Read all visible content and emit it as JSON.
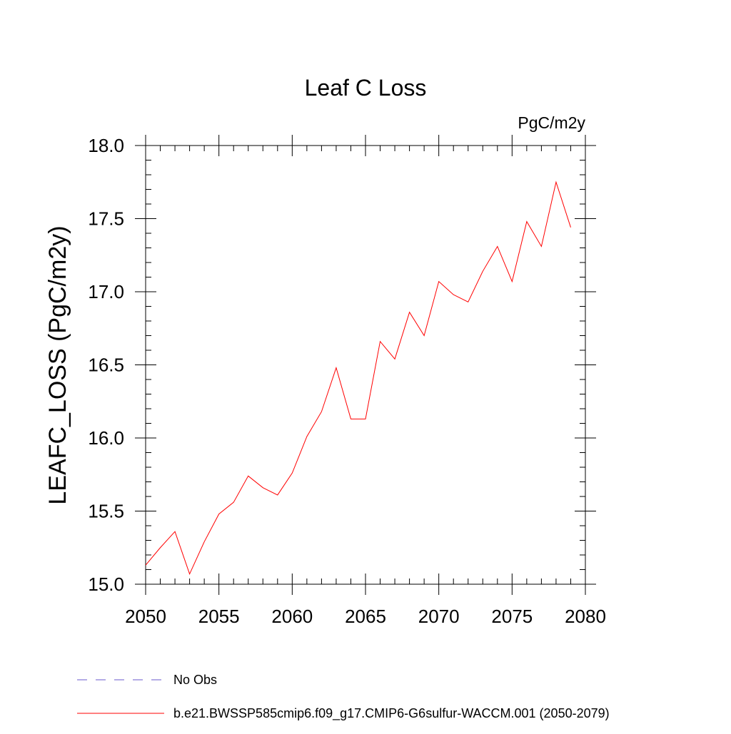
{
  "chart_data": {
    "type": "line",
    "title": "Leaf C Loss",
    "units_label": "PgC/m2y",
    "ylabel": "LEAFC_LOSS  (PgC/m2y)",
    "xlabel": "",
    "xlim": [
      2050,
      2080
    ],
    "ylim": [
      15.0,
      18.0
    ],
    "x_ticks": [
      "2050",
      "2055",
      "2060",
      "2065",
      "2070",
      "2075",
      "2080"
    ],
    "y_ticks": [
      "15.0",
      "15.5",
      "16.0",
      "16.5",
      "17.0",
      "17.5",
      "18.0"
    ],
    "grid": false,
    "legend_position": "bottom",
    "series": [
      {
        "name": "b.e21.BWSSP585cmip6.f09_g17.CMIP6-G6sulfur-WACCM.001 (2050-2079)",
        "color": "#ff0000",
        "style": "solid",
        "x": [
          2050,
          2051,
          2052,
          2053,
          2054,
          2055,
          2056,
          2057,
          2058,
          2059,
          2060,
          2061,
          2062,
          2063,
          2064,
          2065,
          2066,
          2067,
          2068,
          2069,
          2070,
          2071,
          2072,
          2073,
          2074,
          2075,
          2076,
          2077,
          2078,
          2079
        ],
        "values": [
          15.13,
          15.25,
          15.36,
          15.07,
          15.29,
          15.48,
          15.56,
          15.74,
          15.66,
          15.61,
          15.76,
          16.01,
          16.18,
          16.48,
          16.13,
          16.13,
          16.66,
          16.54,
          16.86,
          16.7,
          17.07,
          16.98,
          16.93,
          17.14,
          17.31,
          17.07,
          17.48,
          17.31,
          17.75,
          17.44
        ]
      }
    ],
    "legend": [
      {
        "label": "No Obs",
        "color": "#6a5acd",
        "style": "dashed"
      },
      {
        "label": "b.e21.BWSSP585cmip6.f09_g17.CMIP6-G6sulfur-WACCM.001 (2050-2079)",
        "color": "#ff0000",
        "style": "solid"
      }
    ]
  }
}
